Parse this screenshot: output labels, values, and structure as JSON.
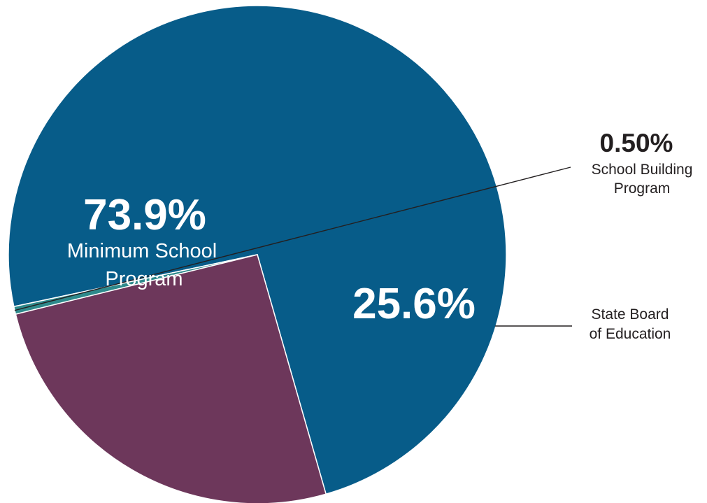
{
  "chart_data": {
    "type": "pie",
    "title": "",
    "slices": [
      {
        "name": "Minimum School Program",
        "value": 73.9,
        "percent_label": "73.9%",
        "label_lines": [
          "Minimum School",
          "Program"
        ],
        "color": "#075c89"
      },
      {
        "name": "School Building Program",
        "value": 0.5,
        "percent_label": "0.50%",
        "label_lines": [
          "School Building",
          "Program"
        ],
        "color": "#2e8a8c"
      },
      {
        "name": "State Board of Education",
        "value": 25.6,
        "percent_label": "25.6%",
        "label_lines": [
          "State Board",
          "of Education"
        ],
        "color": "#6d375b"
      }
    ],
    "label_color_inside": "#ffffff",
    "label_color_outside": "#231f20",
    "leader_color": "#231f20",
    "slice_border_color": "#ffffff"
  }
}
